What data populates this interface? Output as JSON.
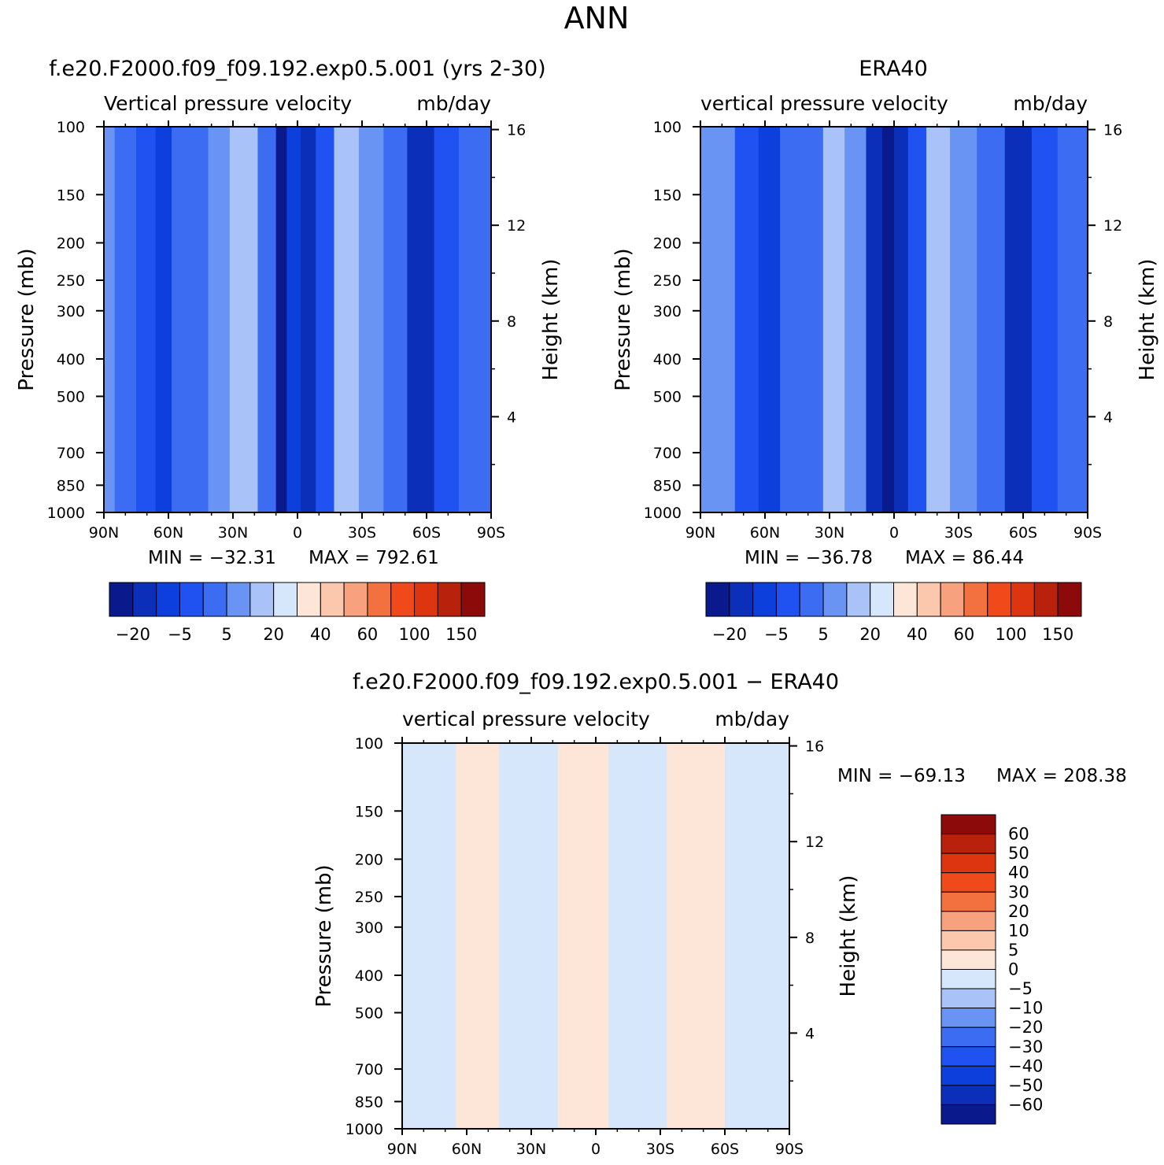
{
  "title": "ANN",
  "colors": {
    "blue_ramp": [
      "#0a1a8c",
      "#0b2fb8",
      "#0d3fdc",
      "#1f52f0",
      "#3b6cf2",
      "#6a94f4",
      "#a9c3f8",
      "#d6e6fb"
    ],
    "red_ramp": [
      "#fde6d8",
      "#fbc7ad",
      "#f7a17e",
      "#f2713f",
      "#f04a1a",
      "#dd3510",
      "#b8220c",
      "#8c0a0a"
    ]
  },
  "chart_data": [
    {
      "id": "model",
      "type": "heatmap",
      "title": "f.e20.F2000.f09_f09.192.exp0.5.001 (yrs 2-30)",
      "subtitle_left": "Vertical pressure velocity",
      "subtitle_right": "mb/day",
      "xlabel": "",
      "ylabel": "Pressure (mb)",
      "y2label": "Height (km)",
      "x_ticks": [
        "90N",
        "60N",
        "30N",
        "0",
        "30S",
        "60S",
        "90S"
      ],
      "x_range": [
        90,
        -90
      ],
      "y_ticks": [
        100,
        150,
        200,
        250,
        300,
        400,
        500,
        700,
        850,
        1000
      ],
      "y_range": [
        100,
        1000
      ],
      "y_scale": "log",
      "y2_ticks": [
        4,
        8,
        12,
        16
      ],
      "min_label": "MIN = −32.31",
      "max_label": "MAX = 792.61",
      "min": -32.31,
      "max": 792.61,
      "colorbar_orientation": "horizontal",
      "colorbar_labels": [
        "−20",
        "−5",
        "5",
        "20",
        "40",
        "60",
        "100",
        "150"
      ],
      "columns": [
        {
          "lat": 90,
          "level": 5
        },
        {
          "lat": 80,
          "level": 4
        },
        {
          "lat": 70,
          "level": 3
        },
        {
          "lat": 62,
          "level": 2
        },
        {
          "lat": 55,
          "level": 4
        },
        {
          "lat": 45,
          "level": 4
        },
        {
          "lat": 38,
          "level": 5
        },
        {
          "lat": 25,
          "level": 6
        },
        {
          "lat": 12,
          "level": 4
        },
        {
          "lat": 8,
          "level": 0
        },
        {
          "lat": 2,
          "level": 2
        },
        {
          "lat": -5,
          "level": 1
        },
        {
          "lat": -12,
          "level": 3
        },
        {
          "lat": -22,
          "level": 6
        },
        {
          "lat": -35,
          "level": 5
        },
        {
          "lat": -45,
          "level": 4
        },
        {
          "lat": -57,
          "level": 1
        },
        {
          "lat": -70,
          "level": 3
        },
        {
          "lat": -80,
          "level": 4
        },
        {
          "lat": -90,
          "level": 4
        }
      ]
    },
    {
      "id": "obs",
      "type": "heatmap",
      "title": "ERA40",
      "subtitle_left": "vertical pressure velocity",
      "subtitle_right": "mb/day",
      "xlabel": "",
      "ylabel": "Pressure (mb)",
      "y2label": "Height (km)",
      "x_ticks": [
        "90N",
        "60N",
        "30N",
        "0",
        "30S",
        "60S",
        "90S"
      ],
      "x_range": [
        90,
        -90
      ],
      "y_ticks": [
        100,
        150,
        200,
        250,
        300,
        400,
        500,
        700,
        850,
        1000
      ],
      "y_range": [
        100,
        1000
      ],
      "y_scale": "log",
      "y2_ticks": [
        4,
        8,
        12,
        16
      ],
      "min_label": "MIN = −36.78",
      "max_label": "MAX =   86.44",
      "min": -36.78,
      "max": 86.44,
      "colorbar_orientation": "horizontal",
      "colorbar_labels": [
        "−20",
        "−5",
        "5",
        "20",
        "40",
        "60",
        "100",
        "150"
      ],
      "columns": [
        {
          "lat": 90,
          "level": 5
        },
        {
          "lat": 80,
          "level": 5
        },
        {
          "lat": 68,
          "level": 3
        },
        {
          "lat": 58,
          "level": 2
        },
        {
          "lat": 48,
          "level": 4
        },
        {
          "lat": 38,
          "level": 4
        },
        {
          "lat": 28,
          "level": 6
        },
        {
          "lat": 18,
          "level": 5
        },
        {
          "lat": 8,
          "level": 1
        },
        {
          "lat": 3,
          "level": 0
        },
        {
          "lat": -3,
          "level": 1
        },
        {
          "lat": -10,
          "level": 3
        },
        {
          "lat": -20,
          "level": 6
        },
        {
          "lat": -32,
          "level": 5
        },
        {
          "lat": -45,
          "level": 4
        },
        {
          "lat": -58,
          "level": 1
        },
        {
          "lat": -70,
          "level": 3
        },
        {
          "lat": -82,
          "level": 4
        },
        {
          "lat": -90,
          "level": 4
        }
      ]
    },
    {
      "id": "diff",
      "type": "heatmap",
      "title": "f.e20.F2000.f09_f09.192.exp0.5.001 − ERA40",
      "subtitle_left": "vertical pressure velocity",
      "subtitle_right": "mb/day",
      "xlabel": "",
      "ylabel": "Pressure (mb)",
      "y2label": "Height (km)",
      "x_ticks": [
        "90N",
        "60N",
        "30N",
        "0",
        "30S",
        "60S",
        "90S"
      ],
      "x_range": [
        90,
        -90
      ],
      "y_ticks": [
        100,
        150,
        200,
        250,
        300,
        400,
        500,
        700,
        850,
        1000
      ],
      "y_range": [
        100,
        1000
      ],
      "y_scale": "log",
      "y2_ticks": [
        4,
        8,
        12,
        16
      ],
      "min_label": "MIN = −69.13",
      "max_label": "MAX = 208.38",
      "min": -69.13,
      "max": 208.38,
      "colorbar_orientation": "vertical",
      "colorbar_labels": [
        "60",
        "50",
        "40",
        "30",
        "20",
        "10",
        "5",
        "0",
        "−5",
        "−10",
        "−20",
        "−30",
        "−40",
        "−50",
        "−60"
      ],
      "columns": [
        {
          "lat": 90,
          "level": 7
        },
        {
          "lat": 70,
          "level": 7
        },
        {
          "lat": 60,
          "level": 8
        },
        {
          "lat": 50,
          "level": 8
        },
        {
          "lat": 40,
          "level": 7
        },
        {
          "lat": 20,
          "level": 7
        },
        {
          "lat": 15,
          "level": 8
        },
        {
          "lat": 0,
          "level": 8
        },
        {
          "lat": -12,
          "level": 7
        },
        {
          "lat": -28,
          "level": 7
        },
        {
          "lat": -38,
          "level": 8
        },
        {
          "lat": -55,
          "level": 8
        },
        {
          "lat": -65,
          "level": 7
        },
        {
          "lat": -90,
          "level": 7
        }
      ]
    }
  ]
}
